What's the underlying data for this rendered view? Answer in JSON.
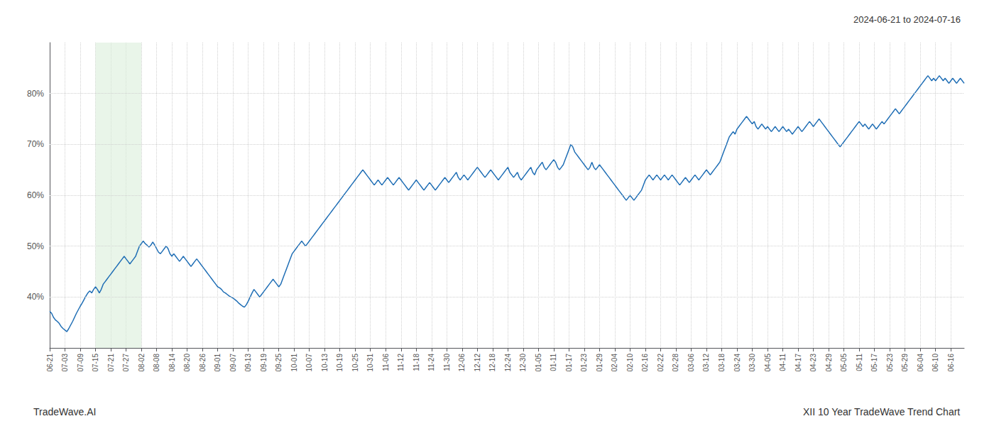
{
  "chart_data": {
    "type": "line",
    "title": "XII 10 Year TradeWave Trend Chart",
    "subtitle": "2024-06-21 to 2024-07-16",
    "annotations": [
      "TradeWave.AI"
    ],
    "color": "#1f6eb5",
    "grid": true,
    "ylim": [
      30,
      90
    ],
    "yticks": [
      {
        "value": 40,
        "label": "40%"
      },
      {
        "value": 50,
        "label": "50%"
      },
      {
        "value": 60,
        "label": "60%"
      },
      {
        "value": 70,
        "label": "70%"
      },
      {
        "value": 80,
        "label": "80%"
      }
    ],
    "highlight": {
      "start": "07-15",
      "end": "08-02",
      "color": "#daeeda"
    },
    "categories": [
      "06-21",
      null,
      null,
      null,
      null,
      null,
      null,
      null,
      "07-03",
      null,
      null,
      null,
      null,
      null,
      null,
      null,
      "07-09",
      null,
      null,
      null,
      null,
      null,
      null,
      null,
      "07-15",
      null,
      null,
      null,
      null,
      null,
      null,
      null,
      "07-21",
      null,
      null,
      null,
      null,
      null,
      null,
      null,
      "07-27",
      null,
      null,
      null,
      null,
      null,
      null,
      null,
      "08-02",
      null,
      null,
      null,
      null,
      null,
      null,
      null,
      "08-08",
      null,
      null,
      null,
      null,
      null,
      null,
      null,
      "08-14",
      null,
      null,
      null,
      null,
      null,
      null,
      null,
      "08-20",
      null,
      null,
      null,
      null,
      null,
      null,
      null,
      "08-26",
      null,
      null,
      null,
      null,
      null,
      null,
      null,
      "09-01",
      null,
      null,
      null,
      null,
      null,
      null,
      null,
      "09-07",
      null,
      null,
      null,
      null,
      null,
      null,
      null,
      "09-13",
      null,
      null,
      null,
      null,
      null,
      null,
      null,
      "09-19",
      null,
      null,
      null,
      null,
      null,
      null,
      null,
      "09-25",
      null,
      null,
      null,
      null,
      null,
      null,
      null,
      "10-01",
      null,
      null,
      null,
      null,
      null,
      null,
      null,
      "10-07",
      null,
      null,
      null,
      null,
      null,
      null,
      null,
      "10-13",
      null,
      null,
      null,
      null,
      null,
      null,
      null,
      "10-19",
      null,
      null,
      null,
      null,
      null,
      null,
      null,
      "10-25",
      null,
      null,
      null,
      null,
      null,
      null,
      null,
      "10-31",
      null,
      null,
      null,
      null,
      null,
      null,
      null,
      "11-06",
      null,
      null,
      null,
      null,
      null,
      null,
      null,
      "11-12",
      null,
      null,
      null,
      null,
      null,
      null,
      null,
      "11-18",
      null,
      null,
      null,
      null,
      null,
      null,
      null,
      "11-24",
      null,
      null,
      null,
      null,
      null,
      null,
      null,
      "11-30",
      null,
      null,
      null,
      null,
      null,
      null,
      null,
      "12-06",
      null,
      null,
      null,
      null,
      null,
      null,
      null,
      "12-12",
      null,
      null,
      null,
      null,
      null,
      null,
      null,
      "12-18",
      null,
      null,
      null,
      null,
      null,
      null,
      null,
      "12-24",
      null,
      null,
      null,
      null,
      null,
      null,
      null,
      "12-30",
      null,
      null,
      null,
      null,
      null,
      null,
      null,
      "01-05",
      null,
      null,
      null,
      null,
      null,
      null,
      null,
      "01-11",
      null,
      null,
      null,
      null,
      null,
      null,
      null,
      "01-17",
      null,
      null,
      null,
      null,
      null,
      null,
      null,
      "01-23",
      null,
      null,
      null,
      null,
      null,
      null,
      null,
      "01-29",
      null,
      null,
      null,
      null,
      null,
      null,
      null,
      "02-04",
      null,
      null,
      null,
      null,
      null,
      null,
      null,
      "02-10",
      null,
      null,
      null,
      null,
      null,
      null,
      null,
      "02-16",
      null,
      null,
      null,
      null,
      null,
      null,
      null,
      "02-22",
      null,
      null,
      null,
      null,
      null,
      null,
      null,
      "02-28",
      null,
      null,
      null,
      null,
      null,
      null,
      null,
      "03-06",
      null,
      null,
      null,
      null,
      null,
      null,
      null,
      "03-12",
      null,
      null,
      null,
      null,
      null,
      null,
      null,
      "03-18",
      null,
      null,
      null,
      null,
      null,
      null,
      null,
      "03-24",
      null,
      null,
      null,
      null,
      null,
      null,
      null,
      "03-30",
      null,
      null,
      null,
      null,
      null,
      null,
      null,
      "04-05",
      null,
      null,
      null,
      null,
      null,
      null,
      null,
      "04-11",
      null,
      null,
      null,
      null,
      null,
      null,
      null,
      "04-17",
      null,
      null,
      null,
      null,
      null,
      null,
      null,
      "04-23",
      null,
      null,
      null,
      null,
      null,
      null,
      null,
      "04-29",
      null,
      null,
      null,
      null,
      null,
      null,
      null,
      "05-05",
      null,
      null,
      null,
      null,
      null,
      null,
      null,
      "05-11",
      null,
      null,
      null,
      null,
      null,
      null,
      null,
      "05-17",
      null,
      null,
      null,
      null,
      null,
      null,
      null,
      "05-23",
      null,
      null,
      null,
      null,
      null,
      null,
      null,
      "05-29",
      null,
      null,
      null,
      null,
      null,
      null,
      null,
      "06-04",
      null,
      null,
      null,
      null,
      null,
      null,
      null,
      "06-10",
      null,
      null,
      null,
      null,
      null,
      null,
      null,
      "06-16",
      null,
      null,
      null,
      null,
      null,
      null,
      null
    ],
    "values": [
      37.2,
      36.8,
      36.0,
      35.5,
      35.2,
      34.8,
      34.2,
      33.8,
      33.5,
      33.2,
      33.8,
      34.5,
      35.2,
      36.0,
      36.8,
      37.5,
      38.2,
      38.8,
      39.5,
      40.2,
      40.8,
      41.2,
      40.8,
      41.5,
      42.0,
      41.5,
      40.8,
      41.5,
      42.5,
      43.0,
      43.5,
      44.0,
      44.5,
      45.0,
      45.5,
      46.0,
      46.5,
      47.0,
      47.5,
      48.0,
      47.5,
      47.0,
      46.5,
      47.0,
      47.5,
      48.0,
      49.0,
      50.0,
      50.5,
      51.0,
      50.5,
      50.2,
      49.8,
      50.2,
      50.8,
      50.2,
      49.5,
      48.8,
      48.5,
      49.0,
      49.5,
      50.0,
      49.5,
      48.5,
      48.0,
      48.5,
      48.0,
      47.5,
      47.0,
      47.5,
      48.0,
      47.5,
      47.0,
      46.5,
      46.0,
      46.5,
      47.0,
      47.5,
      47.0,
      46.5,
      46.0,
      45.5,
      45.0,
      44.5,
      44.0,
      43.5,
      43.0,
      42.5,
      42.0,
      41.8,
      41.5,
      41.0,
      40.8,
      40.5,
      40.2,
      40.0,
      39.8,
      39.5,
      39.2,
      38.8,
      38.5,
      38.2,
      38.0,
      38.5,
      39.2,
      40.0,
      40.8,
      41.5,
      41.0,
      40.5,
      40.0,
      40.5,
      41.0,
      41.5,
      42.0,
      42.5,
      43.0,
      43.5,
      43.0,
      42.5,
      42.0,
      42.5,
      43.5,
      44.5,
      45.5,
      46.5,
      47.5,
      48.5,
      49.0,
      49.5,
      50.0,
      50.5,
      51.0,
      50.5,
      50.0,
      50.5,
      51.0,
      51.5,
      52.0,
      52.5,
      53.0,
      53.5,
      54.0,
      54.5,
      55.0,
      55.5,
      56.0,
      56.5,
      57.0,
      57.5,
      58.0,
      58.5,
      59.0,
      59.5,
      60.0,
      60.5,
      61.0,
      61.5,
      62.0,
      62.5,
      63.0,
      63.5,
      64.0,
      64.5,
      65.0,
      64.5,
      64.0,
      63.5,
      63.0,
      62.5,
      62.0,
      62.5,
      63.0,
      62.5,
      62.0,
      62.5,
      63.0,
      63.5,
      63.0,
      62.5,
      62.0,
      62.5,
      63.0,
      63.5,
      63.0,
      62.5,
      62.0,
      61.5,
      61.0,
      61.5,
      62.0,
      62.5,
      63.0,
      62.5,
      62.0,
      61.5,
      61.0,
      61.5,
      62.0,
      62.5,
      62.0,
      61.5,
      61.0,
      61.5,
      62.0,
      62.5,
      63.0,
      63.5,
      63.0,
      62.5,
      63.0,
      63.5,
      64.0,
      64.5,
      63.5,
      63.0,
      63.5,
      64.0,
      63.5,
      63.0,
      63.5,
      64.0,
      64.5,
      65.0,
      65.5,
      65.0,
      64.5,
      64.0,
      63.5,
      64.0,
      64.5,
      65.0,
      64.5,
      64.0,
      63.5,
      63.0,
      63.5,
      64.0,
      64.5,
      65.0,
      65.5,
      64.5,
      64.0,
      63.5,
      64.0,
      64.5,
      63.5,
      63.0,
      63.5,
      64.0,
      64.5,
      65.0,
      65.5,
      64.5,
      64.0,
      65.0,
      65.5,
      66.0,
      66.5,
      65.5,
      65.0,
      65.5,
      66.0,
      66.5,
      67.0,
      66.5,
      65.5,
      65.0,
      65.5,
      66.0,
      67.0,
      68.0,
      69.0,
      70.0,
      69.5,
      68.5,
      68.0,
      67.5,
      67.0,
      66.5,
      66.0,
      65.5,
      65.0,
      65.5,
      66.5,
      65.5,
      65.0,
      65.5,
      66.0,
      65.5,
      65.0,
      64.5,
      64.0,
      63.5,
      63.0,
      62.5,
      62.0,
      61.5,
      61.0,
      60.5,
      60.0,
      59.5,
      59.0,
      59.5,
      60.0,
      59.5,
      59.0,
      59.5,
      60.0,
      60.5,
      61.0,
      62.0,
      63.0,
      63.5,
      64.0,
      63.5,
      63.0,
      63.5,
      64.0,
      63.5,
      63.0,
      63.5,
      64.0,
      63.5,
      63.0,
      63.5,
      64.0,
      63.5,
      63.0,
      62.5,
      62.0,
      62.5,
      63.0,
      63.5,
      63.0,
      62.5,
      63.0,
      63.5,
      64.0,
      63.5,
      63.0,
      63.5,
      64.0,
      64.5,
      65.0,
      64.5,
      64.0,
      64.5,
      65.0,
      65.5,
      66.0,
      66.5,
      67.5,
      68.5,
      69.5,
      70.5,
      71.5,
      72.0,
      72.5,
      72.0,
      73.0,
      73.5,
      74.0,
      74.5,
      75.0,
      75.5,
      75.0,
      74.5,
      74.0,
      74.5,
      73.5,
      73.0,
      73.5,
      74.0,
      73.5,
      73.0,
      73.5,
      73.0,
      72.5,
      73.0,
      73.5,
      73.0,
      72.5,
      73.0,
      73.5,
      73.0,
      72.5,
      73.0,
      72.5,
      72.0,
      72.5,
      73.0,
      73.5,
      73.0,
      72.5,
      73.0,
      73.5,
      74.0,
      74.5,
      74.0,
      73.5,
      74.0,
      74.5,
      75.0,
      74.5,
      74.0,
      73.5,
      73.0,
      72.5,
      72.0,
      71.5,
      71.0,
      70.5,
      70.0,
      69.5,
      70.0,
      70.5,
      71.0,
      71.5,
      72.0,
      72.5,
      73.0,
      73.5,
      74.0,
      74.5,
      74.0,
      73.5,
      74.0,
      73.5,
      73.0,
      73.5,
      74.0,
      73.5,
      73.0,
      73.5,
      74.0,
      74.5,
      74.0,
      74.5,
      75.0,
      75.5,
      76.0,
      76.5,
      77.0,
      76.5,
      76.0,
      76.5,
      77.0,
      77.5,
      78.0,
      78.5,
      79.0,
      79.5,
      80.0,
      80.5,
      81.0,
      81.5,
      82.0,
      82.5,
      83.0,
      83.5,
      83.0,
      82.5,
      83.0,
      82.5,
      83.0,
      83.5,
      83.0,
      82.5,
      83.0,
      82.5,
      82.0,
      82.5,
      83.0,
      82.5,
      82.0,
      82.5,
      83.0,
      82.5,
      82.0
    ]
  }
}
